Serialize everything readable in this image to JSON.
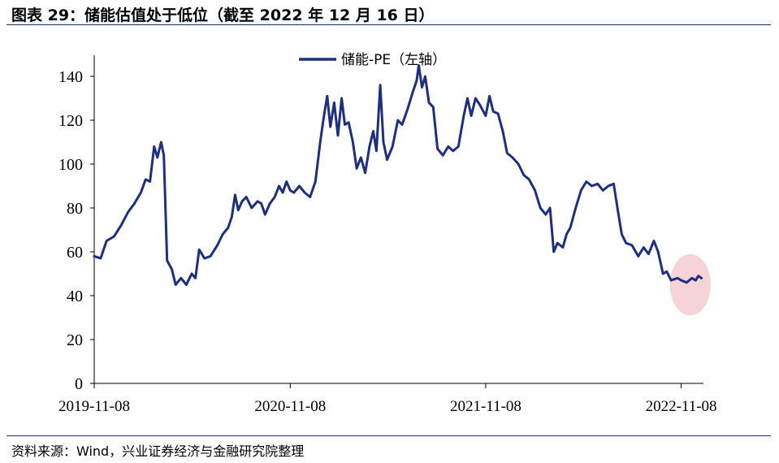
{
  "title": "图表 29：储能估值处于低位（截至 2022 年 12 月 16 日）",
  "source": "资料来源：Wind，兴业证券经济与金融研究院整理",
  "highlight_color": "#f2c4c8",
  "chart_data": {
    "type": "line",
    "title": "图表 29：储能估值处于低位（截至 2022 年 12 月 16 日）",
    "xlabel": "",
    "ylabel": "",
    "ylim": [
      0,
      150
    ],
    "yticks": [
      0,
      20,
      40,
      60,
      80,
      100,
      120,
      140
    ],
    "xticks": [
      "2019-11-08",
      "2020-11-08",
      "2021-11-08",
      "2022-11-08"
    ],
    "xlim": [
      "2019-11-08",
      "2022-12-16"
    ],
    "grid": false,
    "legend": "top-center",
    "series": [
      {
        "name": "储能-PE（左轴）",
        "color": "#1f2f80",
        "points": [
          [
            "2019-11-08",
            58
          ],
          [
            "2019-11-20",
            57
          ],
          [
            "2019-12-01",
            65
          ],
          [
            "2019-12-15",
            67
          ],
          [
            "2019-12-28",
            72
          ],
          [
            "2020-01-10",
            78
          ],
          [
            "2020-01-22",
            82
          ],
          [
            "2020-02-03",
            87
          ],
          [
            "2020-02-12",
            93
          ],
          [
            "2020-02-20",
            92
          ],
          [
            "2020-02-28",
            108
          ],
          [
            "2020-03-05",
            103
          ],
          [
            "2020-03-12",
            110
          ],
          [
            "2020-03-17",
            104
          ],
          [
            "2020-03-23",
            56
          ],
          [
            "2020-04-01",
            52
          ],
          [
            "2020-04-08",
            45
          ],
          [
            "2020-04-18",
            48
          ],
          [
            "2020-04-28",
            45
          ],
          [
            "2020-05-08",
            50
          ],
          [
            "2020-05-15",
            48
          ],
          [
            "2020-05-22",
            61
          ],
          [
            "2020-06-01",
            57
          ],
          [
            "2020-06-12",
            58
          ],
          [
            "2020-06-25",
            63
          ],
          [
            "2020-07-05",
            68
          ],
          [
            "2020-07-15",
            71
          ],
          [
            "2020-07-22",
            76
          ],
          [
            "2020-07-28",
            86
          ],
          [
            "2020-08-03",
            79
          ],
          [
            "2020-08-10",
            83
          ],
          [
            "2020-08-18",
            85
          ],
          [
            "2020-08-28",
            80
          ],
          [
            "2020-09-08",
            83
          ],
          [
            "2020-09-15",
            82
          ],
          [
            "2020-09-22",
            77
          ],
          [
            "2020-10-01",
            82
          ],
          [
            "2020-10-10",
            85
          ],
          [
            "2020-10-18",
            90
          ],
          [
            "2020-10-25",
            87
          ],
          [
            "2020-11-01",
            92
          ],
          [
            "2020-11-08",
            88
          ],
          [
            "2020-11-15",
            87
          ],
          [
            "2020-11-25",
            90
          ],
          [
            "2020-12-05",
            87
          ],
          [
            "2020-12-15",
            85
          ],
          [
            "2020-12-25",
            92
          ],
          [
            "2021-01-03",
            110
          ],
          [
            "2021-01-10",
            122
          ],
          [
            "2021-01-16",
            131
          ],
          [
            "2021-01-22",
            117
          ],
          [
            "2021-01-29",
            128
          ],
          [
            "2021-02-05",
            113
          ],
          [
            "2021-02-12",
            130
          ],
          [
            "2021-02-18",
            118
          ],
          [
            "2021-02-25",
            119
          ],
          [
            "2021-03-05",
            110
          ],
          [
            "2021-03-12",
            98
          ],
          [
            "2021-03-20",
            103
          ],
          [
            "2021-03-28",
            96
          ],
          [
            "2021-04-05",
            108
          ],
          [
            "2021-04-12",
            115
          ],
          [
            "2021-04-18",
            106
          ],
          [
            "2021-04-25",
            136
          ],
          [
            "2021-05-01",
            110
          ],
          [
            "2021-05-08",
            102
          ],
          [
            "2021-05-18",
            108
          ],
          [
            "2021-05-28",
            120
          ],
          [
            "2021-06-05",
            118
          ],
          [
            "2021-06-15",
            125
          ],
          [
            "2021-06-25",
            133
          ],
          [
            "2021-07-02",
            138
          ],
          [
            "2021-07-06",
            145
          ],
          [
            "2021-07-12",
            135
          ],
          [
            "2021-07-18",
            140
          ],
          [
            "2021-07-25",
            128
          ],
          [
            "2021-08-02",
            126
          ],
          [
            "2021-08-10",
            107
          ],
          [
            "2021-08-20",
            104
          ],
          [
            "2021-08-30",
            108
          ],
          [
            "2021-09-08",
            106
          ],
          [
            "2021-09-18",
            108
          ],
          [
            "2021-09-28",
            122
          ],
          [
            "2021-10-05",
            130
          ],
          [
            "2021-10-12",
            122
          ],
          [
            "2021-10-20",
            130
          ],
          [
            "2021-10-28",
            127
          ],
          [
            "2021-11-08",
            122
          ],
          [
            "2021-11-15",
            131
          ],
          [
            "2021-11-22",
            124
          ],
          [
            "2021-12-01",
            123
          ],
          [
            "2021-12-10",
            115
          ],
          [
            "2021-12-18",
            105
          ],
          [
            "2021-12-28",
            103
          ],
          [
            "2022-01-08",
            100
          ],
          [
            "2022-01-18",
            95
          ],
          [
            "2022-01-28",
            93
          ],
          [
            "2022-02-08",
            88
          ],
          [
            "2022-02-18",
            80
          ],
          [
            "2022-02-28",
            77
          ],
          [
            "2022-03-08",
            80
          ],
          [
            "2022-03-15",
            60
          ],
          [
            "2022-03-22",
            64
          ],
          [
            "2022-04-01",
            62
          ],
          [
            "2022-04-08",
            68
          ],
          [
            "2022-04-15",
            71
          ],
          [
            "2022-04-25",
            80
          ],
          [
            "2022-05-05",
            88
          ],
          [
            "2022-05-15",
            92
          ],
          [
            "2022-05-25",
            90
          ],
          [
            "2022-06-05",
            91
          ],
          [
            "2022-06-15",
            88
          ],
          [
            "2022-06-25",
            90
          ],
          [
            "2022-07-05",
            91
          ],
          [
            "2022-07-12",
            80
          ],
          [
            "2022-07-20",
            68
          ],
          [
            "2022-07-28",
            64
          ],
          [
            "2022-08-08",
            63
          ],
          [
            "2022-08-20",
            58
          ],
          [
            "2022-08-30",
            62
          ],
          [
            "2022-09-08",
            59
          ],
          [
            "2022-09-18",
            65
          ],
          [
            "2022-09-26",
            60
          ],
          [
            "2022-10-05",
            50
          ],
          [
            "2022-10-12",
            51
          ],
          [
            "2022-10-20",
            47
          ],
          [
            "2022-11-01",
            48
          ],
          [
            "2022-11-08",
            47
          ],
          [
            "2022-11-18",
            46
          ],
          [
            "2022-11-28",
            48
          ],
          [
            "2022-12-05",
            47
          ],
          [
            "2022-12-10",
            49
          ],
          [
            "2022-12-16",
            48
          ]
        ]
      }
    ],
    "annotations": [
      {
        "type": "highlight-circle",
        "x": "2022-11-25",
        "y": 45,
        "rx_days": 38,
        "ry_value": 14
      }
    ]
  }
}
